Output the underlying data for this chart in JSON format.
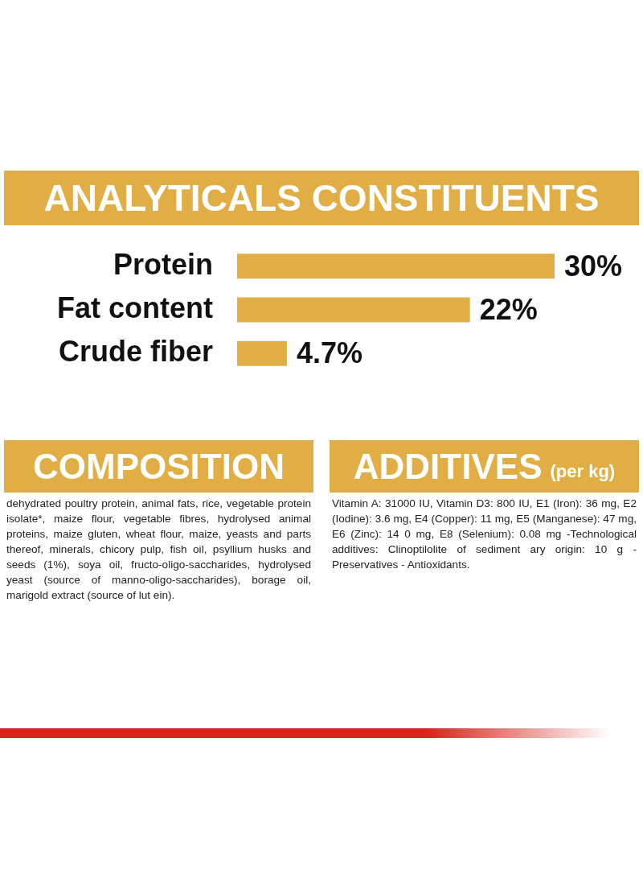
{
  "chart_data": [
    {
      "type": "bar",
      "title": "ANALYTICALS CONSTITUENTS",
      "orientation": "horizontal",
      "categories": [
        "Protein",
        "Fat content",
        "Crude fiber"
      ],
      "values": [
        30,
        22,
        4.7
      ],
      "value_labels": [
        "30%",
        "22%",
        "4.7%"
      ],
      "color": "#e0ae45",
      "tick_labels": "y"
    },
    {
      "type": "other",
      "title": "COMPOSITION",
      "annotations": [
        "dehydrated poultry protein, animal fats, rice, vegetable protein isolate*, maize flour, vegetable fibres, hydrolysed animal proteins, maize gluten, wheat flour, maize, yeasts and parts thereof, minerals, chicory pulp, fish oil, psyllium husks and seeds (1%), soya oil, fructo-oligo-saccharides, hydrolysed yeast (source of manno-oligo-saccharides), borage oil, marigold extract (source of lut ein)."
      ]
    },
    {
      "type": "other",
      "title": "ADDITIVES",
      "subtitle": "(per kg)",
      "annotations": [
        "Vitamin A: 31000 IU, Vitamin D3: 800 IU, E1 (Iron): 36 mg, E2 (Iodine): 3.6 mg, E4 (Copper): 11 mg, E5 (Manganese): 47 mg, E6 (Zinc): 14 0 mg, E8 (Selenium): 0.08 mg -Technological additives: Clinoptilolite of sediment ary origin: 10 g - Preservatives - Antioxidants."
      ]
    }
  ]
}
